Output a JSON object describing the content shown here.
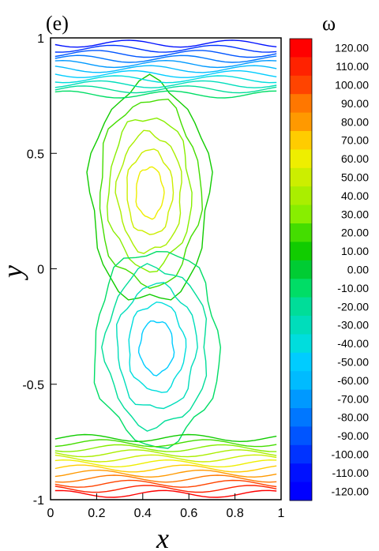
{
  "chart_data": {
    "type": "contour",
    "panel_label": "(e)",
    "xlabel": "x",
    "ylabel": "y",
    "xlim": [
      0,
      1
    ],
    "ylim": [
      -1,
      1
    ],
    "x_ticks": [
      "0",
      "0.2",
      "0.4",
      "0.6",
      "0.8",
      "1"
    ],
    "y_ticks": [
      "1",
      "0.5",
      "0",
      "-0.5",
      "-1"
    ],
    "colorbar": {
      "title": "ω",
      "min": -120,
      "max": 120,
      "step": 10,
      "tick_labels": [
        "120.00",
        "110.00",
        "100.00",
        "90.00",
        "80.00",
        "70.00",
        "60.00",
        "50.00",
        "40.00",
        "30.00",
        "20.00",
        "10.00",
        "0.00",
        "-10.00",
        "-20.00",
        "-30.00",
        "-40.00",
        "-50.00",
        "-60.00",
        "-70.00",
        "-80.00",
        "-90.00",
        "-100.00",
        "-110.00",
        "-120.00"
      ],
      "colors": [
        "#ff0000",
        "#ff2200",
        "#ff4400",
        "#ff7700",
        "#ff9900",
        "#ffcc00",
        "#eeee00",
        "#ccee00",
        "#aaee00",
        "#88ee00",
        "#44dd00",
        "#11cc00",
        "#00cc33",
        "#00dd66",
        "#00dd99",
        "#00ddbb",
        "#00dddd",
        "#00ccff",
        "#00bbff",
        "#0099ff",
        "#0077ff",
        "#0055ff",
        "#0033ff",
        "#0011ff",
        "#0000ff"
      ]
    },
    "vortices": [
      {
        "name": "upper",
        "center": [
          0.43,
          0.33
        ],
        "peak": 65,
        "rx": 0.3,
        "ry": 0.55
      },
      {
        "name": "lower",
        "center": [
          0.46,
          -0.34
        ],
        "peak": -55,
        "rx": 0.32,
        "ry": 0.5
      }
    ],
    "walls": [
      {
        "name": "top",
        "level": -110
      },
      {
        "name": "bottom",
        "level": 120
      }
    ]
  }
}
